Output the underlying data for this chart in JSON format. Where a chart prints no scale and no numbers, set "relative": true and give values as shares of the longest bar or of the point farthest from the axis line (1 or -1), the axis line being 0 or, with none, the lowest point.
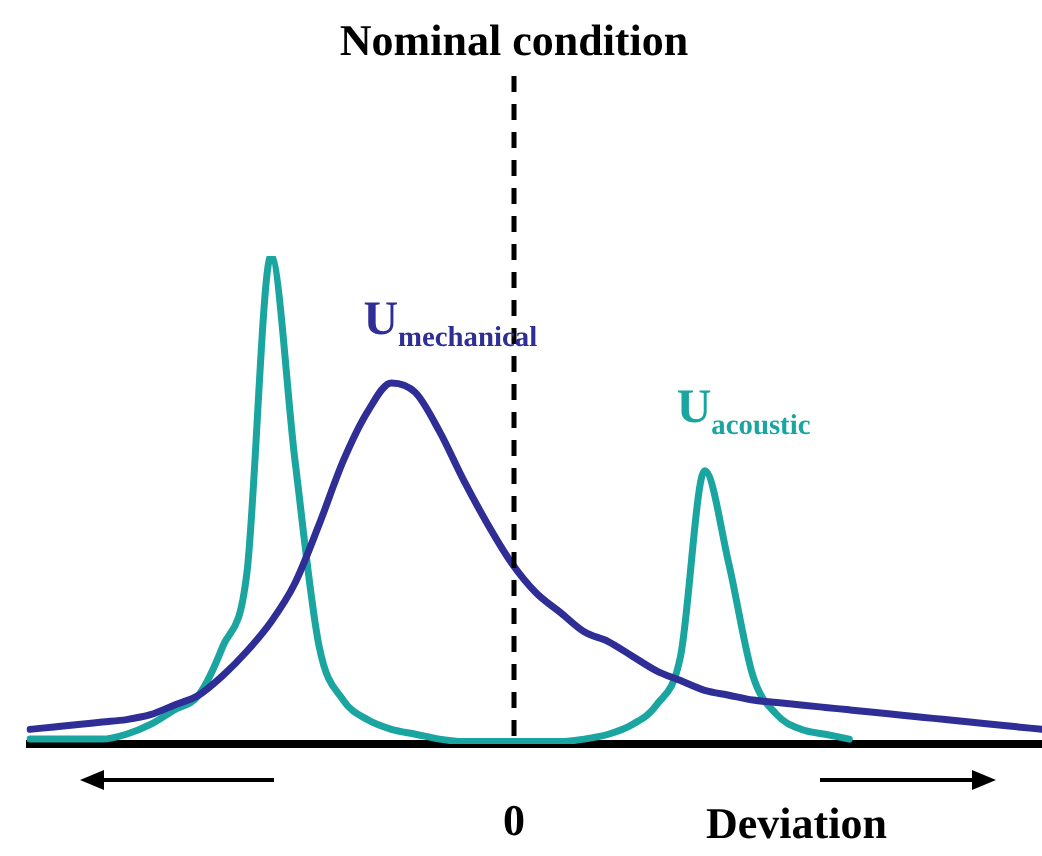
{
  "chart_data": {
    "type": "line",
    "relative": true,
    "xlabel": "Deviation",
    "categories": [
      null,
      null,
      null,
      null,
      null,
      null,
      null,
      null,
      null,
      null,
      null,
      null,
      null,
      null,
      null,
      null,
      null,
      null,
      null,
      null,
      null,
      null,
      null,
      null,
      null,
      null,
      null,
      null,
      null,
      null,
      null,
      null,
      null,
      null,
      null,
      null,
      null,
      null,
      null,
      null,
      null,
      null,
      null
    ],
    "annotations": [
      "0"
    ],
    "series": [
      {
        "name": "U$_{mechanical}$",
        "color": "#2e2e96",
        "values": [
          0.03,
          0.035,
          0.04,
          0.045,
          0.05,
          0.06,
          0.08,
          0.1,
          0.14,
          0.19,
          0.25,
          0.33,
          0.45,
          0.58,
          0.68,
          0.74,
          0.72,
          0.64,
          0.54,
          0.45,
          0.37,
          0.31,
          0.27,
          0.23,
          0.21,
          0.18,
          0.15,
          0.13,
          0.11,
          0.1,
          0.09,
          0.085,
          0.08,
          0.075,
          0.07,
          0.065,
          0.06,
          0.055,
          0.05,
          0.045,
          0.04,
          0.035,
          0.03
        ]
      },
      {
        "name": "U$_{acoustic}$",
        "color": "#1aa5a0",
        "values": [
          0.01,
          0.01,
          0.01,
          0.01,
          0.02,
          0.04,
          0.07,
          0.1,
          0.2,
          0.35,
          1,
          0.58,
          0.2,
          0.09,
          0.05,
          0.03,
          0.02,
          0.01,
          0.005,
          0.005,
          0.005,
          0.005,
          0.005,
          0.01,
          0.02,
          0.04,
          0.08,
          0.18,
          0.56,
          0.37,
          0.14,
          0.06,
          0.03,
          0.02,
          0.01,
          null,
          null,
          null,
          null,
          null,
          null,
          null,
          null
        ]
      }
    ],
    "title": "Nominal condition",
    "marker": "none",
    "line_style": "solid",
    "grid": false,
    "legend": false
  }
}
